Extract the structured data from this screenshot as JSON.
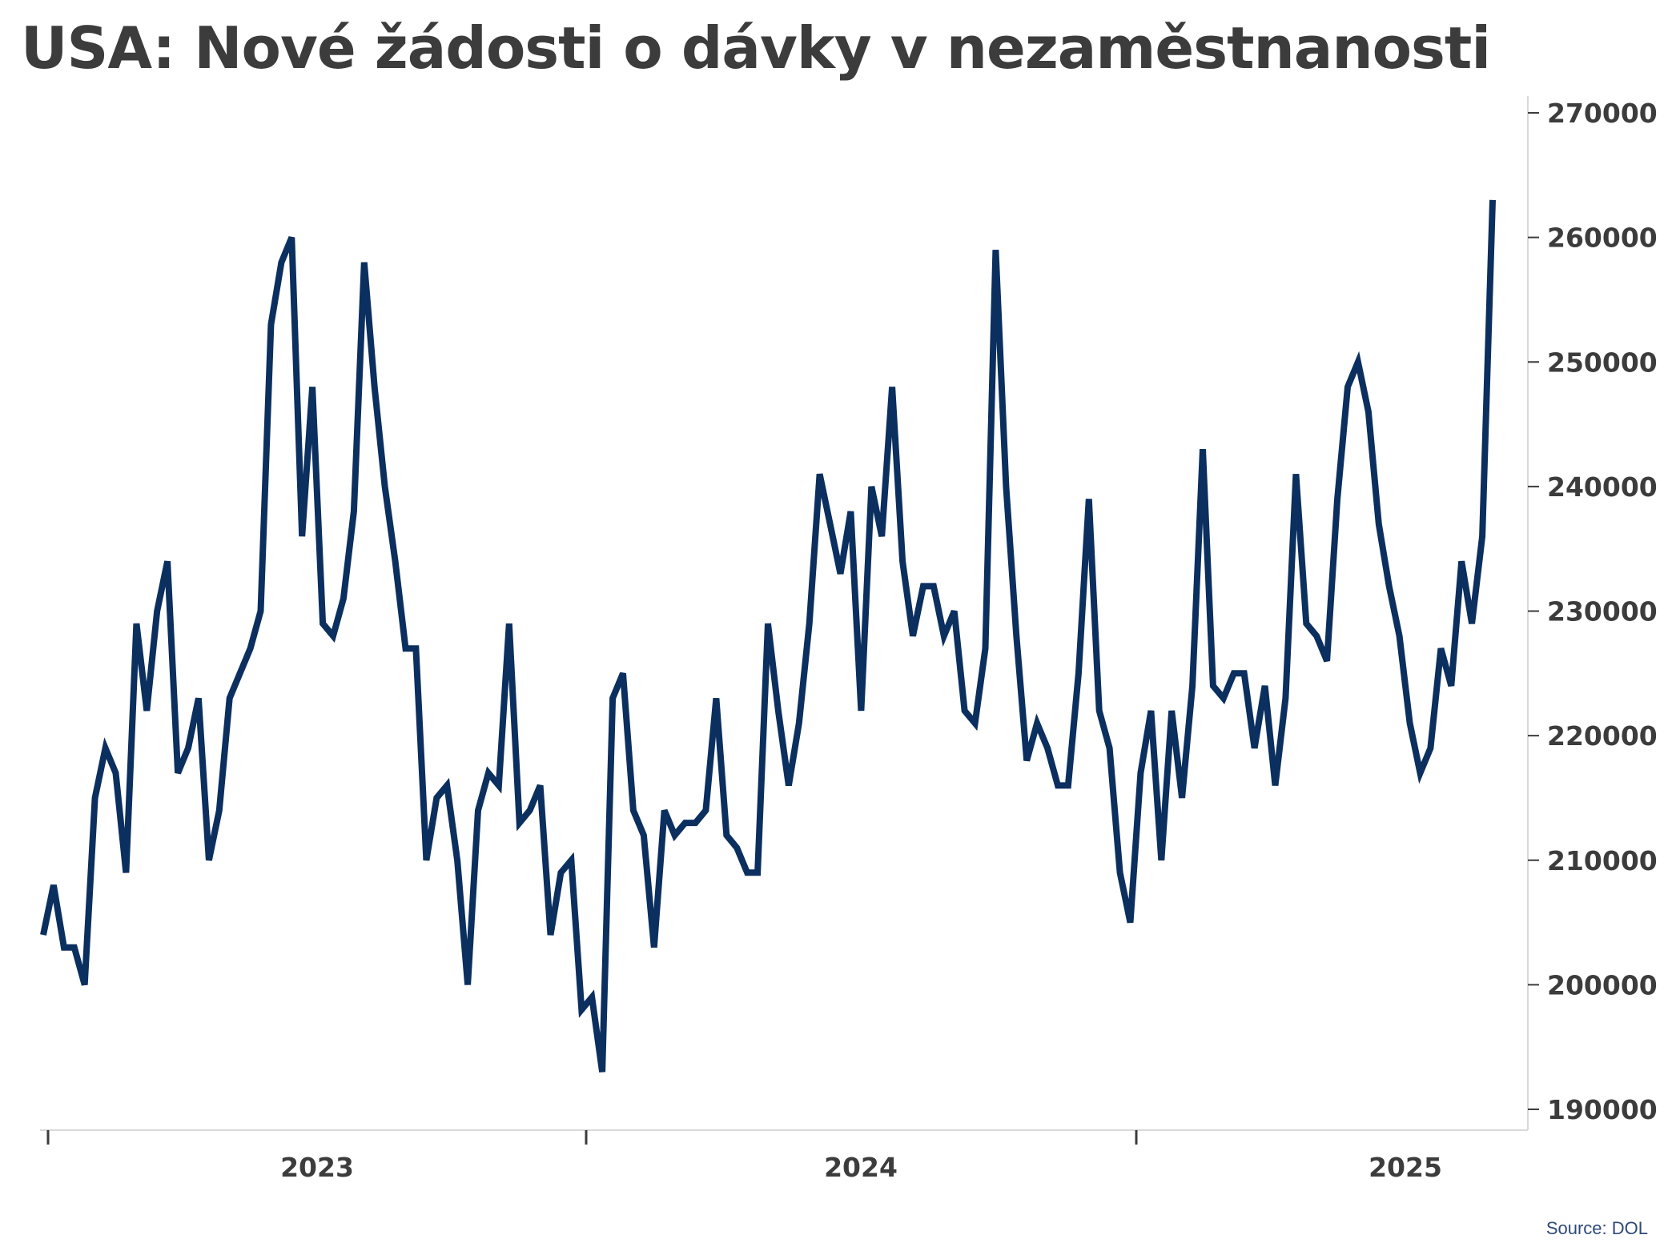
{
  "title": "USA: Nové žádosti o dávky v nezaměstnanosti",
  "source": "Source: DOL",
  "colors": {
    "line": "#0b2f5e",
    "axis": "#3c3c3c",
    "frame": "#d9d9d9"
  },
  "chart_data": {
    "type": "line",
    "title": "USA: Nové žádosti o dávky v nezaměstnanosti",
    "xlabel": "",
    "ylabel": "",
    "ylim": [
      188000,
      271500
    ],
    "yticks": [
      190000,
      200000,
      210000,
      220000,
      230000,
      240000,
      250000,
      260000,
      270000
    ],
    "y_axis_side": "right",
    "x_year_labels": [
      "2023",
      "2024",
      "2025"
    ],
    "grid": false,
    "legend": "none",
    "series": [
      {
        "values": [
          204000,
          208000,
          203000,
          203000,
          200000,
          215000,
          219000,
          217000,
          209000,
          229000,
          222000,
          230000,
          234000,
          217000,
          219000,
          223000,
          210000,
          214000,
          223000,
          225000,
          227000,
          230000,
          253000,
          258000,
          260000,
          236000,
          248000,
          229000,
          228000,
          231000,
          238000,
          258000,
          248000,
          240000,
          234000,
          227000,
          227000,
          210000,
          215000,
          216000,
          210000,
          200000,
          214000,
          217000,
          216000,
          229000,
          213000,
          214000,
          216000,
          204000,
          209000,
          210000,
          198000,
          199000,
          193000,
          223000,
          225000,
          214000,
          212000,
          203000,
          214000,
          212000,
          213000,
          213000,
          214000,
          223000,
          212000,
          211000,
          209000,
          209000,
          229000,
          222000,
          216000,
          221000,
          229000,
          241000,
          237000,
          233000,
          238000,
          222000,
          240000,
          236000,
          248000,
          234000,
          228000,
          232000,
          232000,
          228000,
          230000,
          222000,
          221000,
          227000,
          259000,
          240000,
          228000,
          218000,
          221000,
          219000,
          216000,
          216000,
          225000,
          239000,
          222000,
          219000,
          209000,
          205000,
          217000,
          222000,
          210000,
          222000,
          215000,
          224000,
          243000,
          224000,
          223000,
          225000,
          225000,
          219000,
          224000,
          216000,
          223000,
          241000,
          229000,
          228000,
          226000,
          239000,
          248000,
          250000,
          246000,
          237000,
          232000,
          228000,
          221000,
          217000,
          219000,
          227000,
          224000,
          234000,
          229000,
          236000,
          263000
        ]
      }
    ]
  }
}
